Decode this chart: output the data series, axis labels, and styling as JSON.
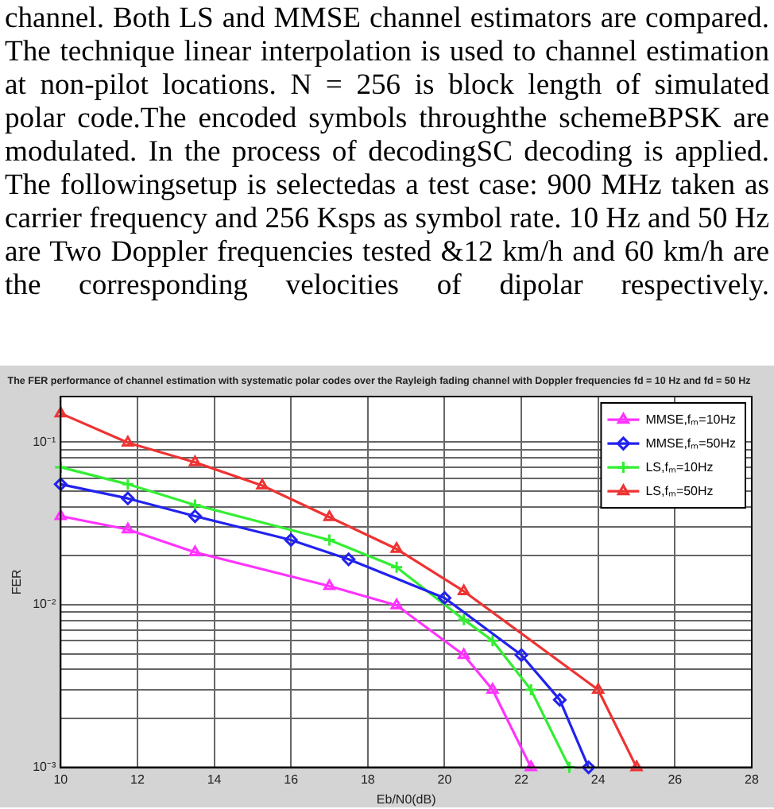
{
  "chart_data": {
    "type": "line",
    "title": "The FER performance of channel estimation with systematic polar codes over the Rayleigh fading channel with Doppler frequencies fd = 10 Hz and fd = 50 Hz",
    "xlabel": "Eb/N0(dB)",
    "ylabel": "FER",
    "annotations": [
      "channel. Both LS and MMSE channel estimators are compared. The technique linear interpolation is used to channel estimation at non-pilot locations. N = 256 is block length of simulated polar code.The encoded symbols throughthe schemeBPSK are modulated. In the process of decodingSC decoding is applied. The followingsetup is selectedas a test case: 900 MHz taken as carrier frequency and 256 Ksps as symbol rate. 10 Hz and 50 Hz are Two Doppler frequencies tested &12 km/h and 60 km/h are the corresponding velocities of dipolar respectively."
    ],
    "series": [
      {
        "name": "MMSE,fₘ=10Hz",
        "color": "#ff33ff",
        "marker": "triangle",
        "x": [
          10,
          11.75,
          13.5,
          17,
          18.75,
          20.5,
          21.25,
          22.25
        ],
        "values": [
          0.035,
          0.029,
          0.021,
          0.013,
          0.0099,
          0.0049,
          0.003,
          0.001
        ]
      },
      {
        "name": "MMSE,fₘ=50Hz",
        "color": "#2222ee",
        "marker": "diamond",
        "x": [
          10,
          11.75,
          13.5,
          16,
          17.5,
          20,
          22,
          23,
          23.75
        ],
        "values": [
          0.055,
          0.045,
          0.035,
          0.025,
          0.019,
          0.011,
          0.0049,
          0.0026,
          0.001
        ]
      },
      {
        "name": "LS,fₘ=10Hz",
        "color": "#33ee33",
        "marker": "cross",
        "x": [
          10,
          11.75,
          13.5,
          17,
          18.75,
          20.5,
          21.25,
          22.25,
          23.25
        ],
        "values": [
          0.07,
          0.055,
          0.041,
          0.025,
          0.017,
          0.0081,
          0.006,
          0.003,
          0.001
        ]
      },
      {
        "name": "LS,fₘ=50Hz",
        "color": "#ee3333",
        "marker": "triangle",
        "x": [
          10,
          11.75,
          13.5,
          15.25,
          17,
          18.75,
          20.5,
          24,
          25
        ],
        "values": [
          0.15,
          0.099,
          0.075,
          0.054,
          0.0345,
          0.022,
          0.0121,
          0.003,
          0.001
        ]
      }
    ],
    "log": "y",
    "xlim": [
      10,
      28
    ],
    "xticks": [
      10,
      12,
      14,
      16,
      18,
      20,
      22,
      24,
      26,
      28
    ],
    "ylim": [
      0.001,
      0.19
    ],
    "yticks": [
      {
        "value": 0.001,
        "label": "10⁻³"
      },
      {
        "value": 0.002,
        "label": null
      },
      {
        "value": 0.003,
        "label": null
      },
      {
        "value": 0.004,
        "label": null
      },
      {
        "value": 0.005,
        "label": null
      },
      {
        "value": 0.006,
        "label": null
      },
      {
        "value": 0.007,
        "label": null
      },
      {
        "value": 0.008,
        "label": null
      },
      {
        "value": 0.009,
        "label": null
      },
      {
        "value": 0.01,
        "label": "10⁻²"
      },
      {
        "value": 0.02,
        "label": null
      },
      {
        "value": 0.03,
        "label": null
      },
      {
        "value": 0.04,
        "label": null
      },
      {
        "value": 0.05,
        "label": null
      },
      {
        "value": 0.06,
        "label": null
      },
      {
        "value": 0.07,
        "label": null
      },
      {
        "value": 0.08,
        "label": null
      },
      {
        "value": 0.09,
        "label": null
      },
      {
        "value": 0.1,
        "label": "10⁻¹"
      }
    ],
    "grid": true,
    "legend": "top right",
    "line_style": "solid"
  }
}
